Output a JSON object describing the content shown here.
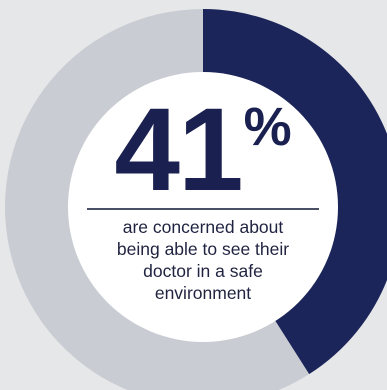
{
  "chart_data": {
    "type": "pie",
    "variant": "donut",
    "categories": [
      "concerned",
      "other"
    ],
    "values": [
      41,
      59
    ],
    "unit": "%",
    "colors": {
      "highlight": "#1b2559",
      "remainder": "#c9ccd2",
      "center": "#ffffff",
      "background": "#e6e7e9"
    }
  },
  "callout": {
    "number": "41",
    "unit": "%",
    "caption_lines": [
      "are concerned about",
      "being able to see their",
      "doctor in a safe",
      "environment"
    ]
  }
}
